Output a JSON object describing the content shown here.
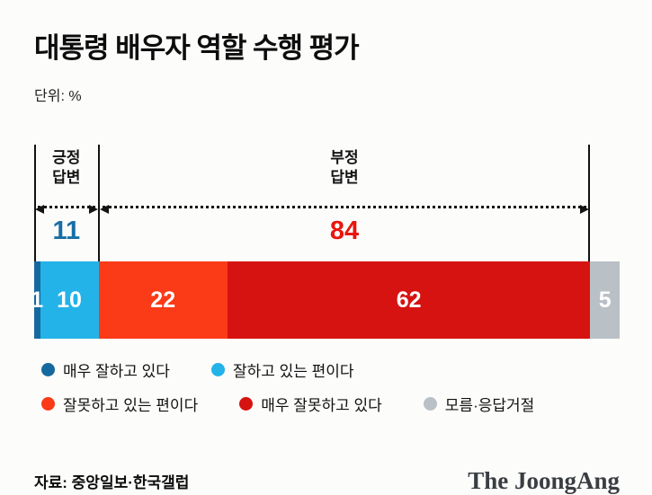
{
  "title": "대통령 배우자 역할 수행 평가",
  "unit_label": "단위: %",
  "chart_data": {
    "type": "bar",
    "variant": "horizontal-stacked-100",
    "title": "대통령 배우자 역할 수행 평가",
    "unit": "%",
    "categories": [
      "매우 잘하고 있다",
      "잘하고 있는 편이다",
      "잘못하고 있는 편이다",
      "매우 잘못하고 있다",
      "모름·응답거절"
    ],
    "values": [
      1,
      10,
      22,
      62,
      5
    ],
    "colors": [
      "#15699f",
      "#23b3e8",
      "#fb3a17",
      "#d61310",
      "#b9c0c6"
    ],
    "widths": [
      "1%",
      "10%",
      "22%",
      "62%",
      "5%"
    ],
    "groups": [
      {
        "label": "긍정\n답변",
        "value": 11,
        "color": "#176fa5",
        "segments": [
          "매우 잘하고 있다",
          "잘하고 있는 편이다"
        ]
      },
      {
        "label": "부정\n답변",
        "value": 84,
        "color": "#e8150d",
        "segments": [
          "잘못하고 있는 편이다",
          "매우 잘못하고 있다"
        ]
      }
    ],
    "legend_position": "bottom",
    "source": "자료: 중앙일보·한국갤럽"
  },
  "legend": {
    "rows": [
      [
        {
          "label": "매우 잘하고 있다",
          "color": "#15699f"
        },
        {
          "label": "잘하고 있는 편이다",
          "color": "#23b3e8"
        }
      ],
      [
        {
          "label": "잘못하고 있는 편이다",
          "color": "#fb3a17"
        },
        {
          "label": "매우 잘못하고 있다",
          "color": "#d61310"
        },
        {
          "label": "모름·응답거절",
          "color": "#b9c0c6"
        }
      ]
    ]
  },
  "footer": {
    "source": "자료: 중앙일보·한국갤럽",
    "brand": "The JoongAng"
  }
}
